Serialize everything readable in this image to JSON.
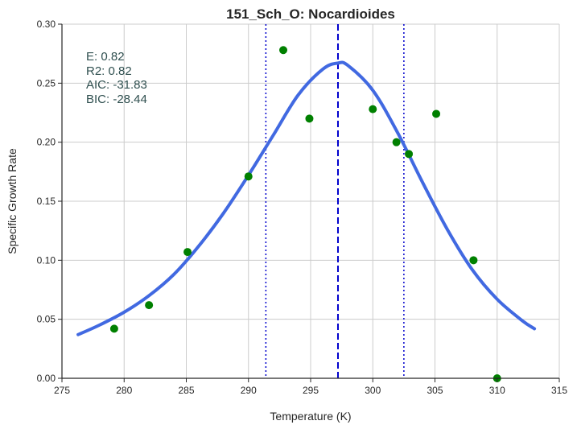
{
  "chart_data": {
    "type": "scatter",
    "title": "151_Sch_O: Nocardioides",
    "xlabel": "Temperature (K)",
    "ylabel": "Specific Growth Rate",
    "xlim": [
      275,
      315
    ],
    "ylim": [
      0.0,
      0.3
    ],
    "xticks": [
      275,
      280,
      285,
      290,
      295,
      300,
      305,
      310,
      315
    ],
    "yticks": [
      0.0,
      0.05,
      0.1,
      0.15,
      0.2,
      0.25,
      0.3
    ],
    "xtick_labels": [
      "275",
      "280",
      "285",
      "290",
      "295",
      "300",
      "305",
      "310",
      "315"
    ],
    "ytick_labels": [
      "0.00",
      "0.05",
      "0.10",
      "0.15",
      "0.20",
      "0.25",
      "0.30"
    ],
    "grid": true,
    "annotations": [
      "E:  0.82",
      "R2:  0.82",
      "AIC: -31.83",
      "BIC: -28.44"
    ],
    "series": [
      {
        "kind": "points",
        "color": "#008000",
        "x": [
          279.2,
          282.0,
          285.1,
          290.0,
          292.8,
          294.9,
          300.0,
          301.9,
          302.9,
          305.1,
          308.1,
          310.0
        ],
        "y": [
          0.042,
          0.062,
          0.107,
          0.171,
          0.278,
          0.22,
          0.228,
          0.2,
          0.19,
          0.224,
          0.1,
          0.0
        ]
      },
      {
        "kind": "line",
        "color": "#4169e1",
        "x": [
          276.3,
          278,
          280,
          282,
          284,
          286,
          288,
          290,
          292,
          294,
          296,
          297.2,
          298,
          300,
          302,
          304,
          306,
          308,
          310,
          312,
          313
        ],
        "y": [
          0.037,
          0.045,
          0.056,
          0.07,
          0.088,
          0.112,
          0.14,
          0.172,
          0.206,
          0.24,
          0.262,
          0.267,
          0.265,
          0.244,
          0.208,
          0.166,
          0.126,
          0.092,
          0.067,
          0.049,
          0.042
        ]
      }
    ],
    "vlines": [
      {
        "x": 297.2,
        "style": "dashed",
        "color": "#0000cc"
      },
      {
        "x": 291.4,
        "style": "dotted",
        "color": "#0000cc"
      },
      {
        "x": 302.5,
        "style": "dotted",
        "color": "#0000cc"
      }
    ]
  }
}
